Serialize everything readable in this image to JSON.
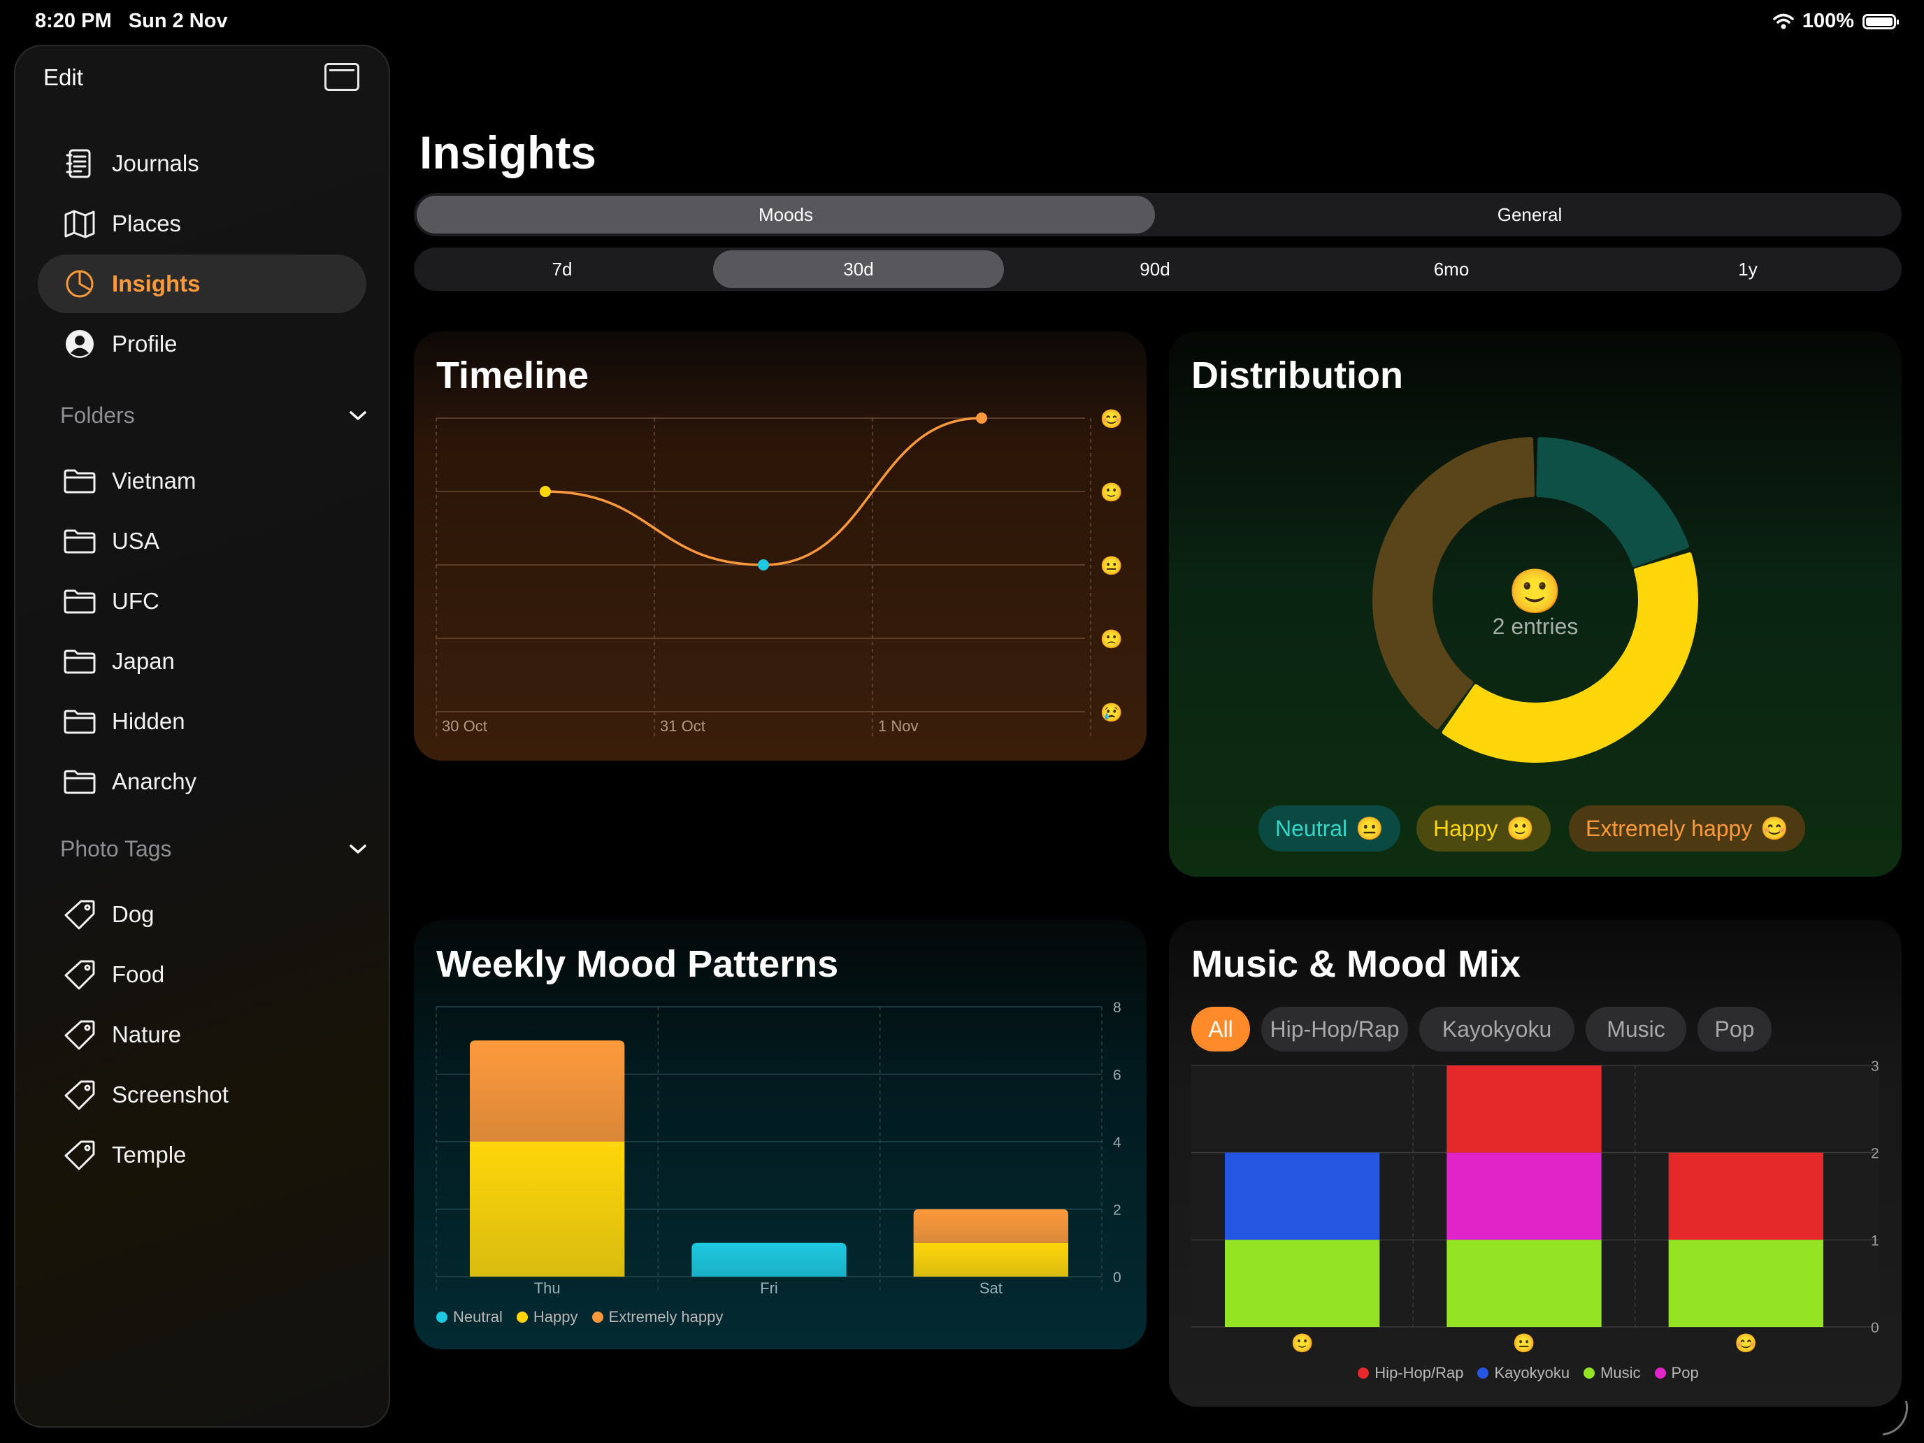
{
  "status_bar": {
    "time": "8:20 PM",
    "date": "Sun 2 Nov",
    "battery": "100%"
  },
  "sidebar": {
    "edit_label": "Edit",
    "nav": [
      {
        "label": "Journals",
        "icon": "journal-icon"
      },
      {
        "label": "Places",
        "icon": "map-icon"
      },
      {
        "label": "Insights",
        "icon": "insights-icon",
        "active": true
      },
      {
        "label": "Profile",
        "icon": "profile-icon"
      }
    ],
    "folders_header": "Folders",
    "folders": [
      {
        "label": "Vietnam",
        "icon": "folder-icon"
      },
      {
        "label": "USA",
        "icon": "folder-icon"
      },
      {
        "label": "UFC",
        "icon": "folder-icon"
      },
      {
        "label": "Japan",
        "icon": "folder-icon"
      },
      {
        "label": "Hidden",
        "icon": "folder-icon"
      },
      {
        "label": "Anarchy",
        "icon": "folder-icon"
      }
    ],
    "tags_header": "Photo Tags",
    "tags": [
      {
        "label": "Dog",
        "icon": "tag-icon"
      },
      {
        "label": "Food",
        "icon": "tag-icon"
      },
      {
        "label": "Nature",
        "icon": "tag-icon"
      },
      {
        "label": "Screenshot",
        "icon": "tag-icon"
      },
      {
        "label": "Temple",
        "icon": "tag-icon"
      }
    ]
  },
  "main": {
    "title": "Insights",
    "tabs": [
      {
        "label": "Moods",
        "selected": true
      },
      {
        "label": "General",
        "selected": false
      }
    ],
    "ranges": [
      {
        "label": "7d"
      },
      {
        "label": "30d",
        "selected": true
      },
      {
        "label": "90d"
      },
      {
        "label": "6mo"
      },
      {
        "label": "1y"
      }
    ]
  },
  "colors": {
    "accent": "#ff9a3c",
    "neutral": "#1ec8e0",
    "happy": "#ffd60a",
    "extremely_happy": "#ff9a3c",
    "hiphop": "#e5282a",
    "kayokyoku": "#2456e2",
    "music": "#95e424",
    "pop": "#e024c8"
  },
  "chart_data": [
    {
      "type": "line",
      "title": "Timeline",
      "x": [
        "30 Oct",
        "31 Oct",
        "1 Nov"
      ],
      "x_ticks": [
        "30 Oct",
        "31 Oct",
        "1 Nov"
      ],
      "y_levels": [
        "😢",
        "🙁",
        "😐",
        "🙂",
        "😊"
      ],
      "ylim": [
        0,
        4
      ],
      "points": [
        {
          "x": "30 Oct 12:00",
          "y": 3,
          "color": "#ffd60a"
        },
        {
          "x": "31 Oct 12:00",
          "y": 2,
          "color": "#1ec8e0"
        },
        {
          "x": "1 Nov 12:00",
          "y": 4,
          "color": "#ff9a3c"
        }
      ],
      "grid": true
    },
    {
      "type": "pie",
      "title": "Distribution",
      "center_label": "2 entries",
      "center_icon": "🙂",
      "slices": [
        {
          "name": "Neutral",
          "value": 1,
          "color": "#0f5046"
        },
        {
          "name": "Happy",
          "value": 2,
          "color": "#ffd60a"
        },
        {
          "name": "Extremely happy",
          "value": 2,
          "color": "#5a4419"
        }
      ],
      "legend": [
        {
          "label": "Neutral",
          "emoji": "😐",
          "bg": "#0b4a42",
          "fg": "#35d6c8"
        },
        {
          "label": "Happy",
          "emoji": "🙂",
          "bg": "#4c4a0e",
          "fg": "#ffd60a"
        },
        {
          "label": "Extremely happy",
          "emoji": "😊",
          "bg": "#4e3a12",
          "fg": "#ff9a3c"
        }
      ]
    },
    {
      "type": "bar",
      "title": "Weekly Mood Patterns",
      "categories": [
        "Thu",
        "Fri",
        "Sat"
      ],
      "series": [
        {
          "name": "Neutral",
          "values": [
            0,
            1,
            0
          ],
          "color": "#1ec8e0"
        },
        {
          "name": "Happy",
          "values": [
            4,
            0,
            1
          ],
          "color": "#ffd60a"
        },
        {
          "name": "Extremely happy",
          "values": [
            3,
            0,
            1
          ],
          "color": "#ff9a3c"
        }
      ],
      "y_ticks": [
        "0",
        "2",
        "4",
        "6",
        "8"
      ],
      "ylim": [
        0,
        8
      ],
      "legend": "bottom-left"
    },
    {
      "type": "bar",
      "title": "Music & Mood Mix",
      "filters": [
        "All",
        "Hip-Hop/Rap",
        "Kayokyoku",
        "Music",
        "Pop"
      ],
      "selected_filter": "All",
      "categories": [
        "🙂",
        "😐",
        "😊"
      ],
      "series": [
        {
          "name": "Music",
          "values": [
            1,
            1,
            1
          ],
          "color": "#95e424"
        },
        {
          "name": "Kayokyoku",
          "values": [
            1,
            0,
            0
          ],
          "color": "#2456e2"
        },
        {
          "name": "Pop",
          "values": [
            0,
            1,
            0
          ],
          "color": "#e024c8"
        },
        {
          "name": "Hip-Hop/Rap",
          "values": [
            0,
            1,
            1
          ],
          "color": "#e5282a"
        }
      ],
      "legend_order": [
        "Hip-Hop/Rap",
        "Kayokyoku",
        "Music",
        "Pop"
      ],
      "y_ticks": [
        "0",
        "1",
        "2",
        "3"
      ],
      "ylim": [
        0,
        3
      ],
      "legend": "bottom-center"
    }
  ]
}
